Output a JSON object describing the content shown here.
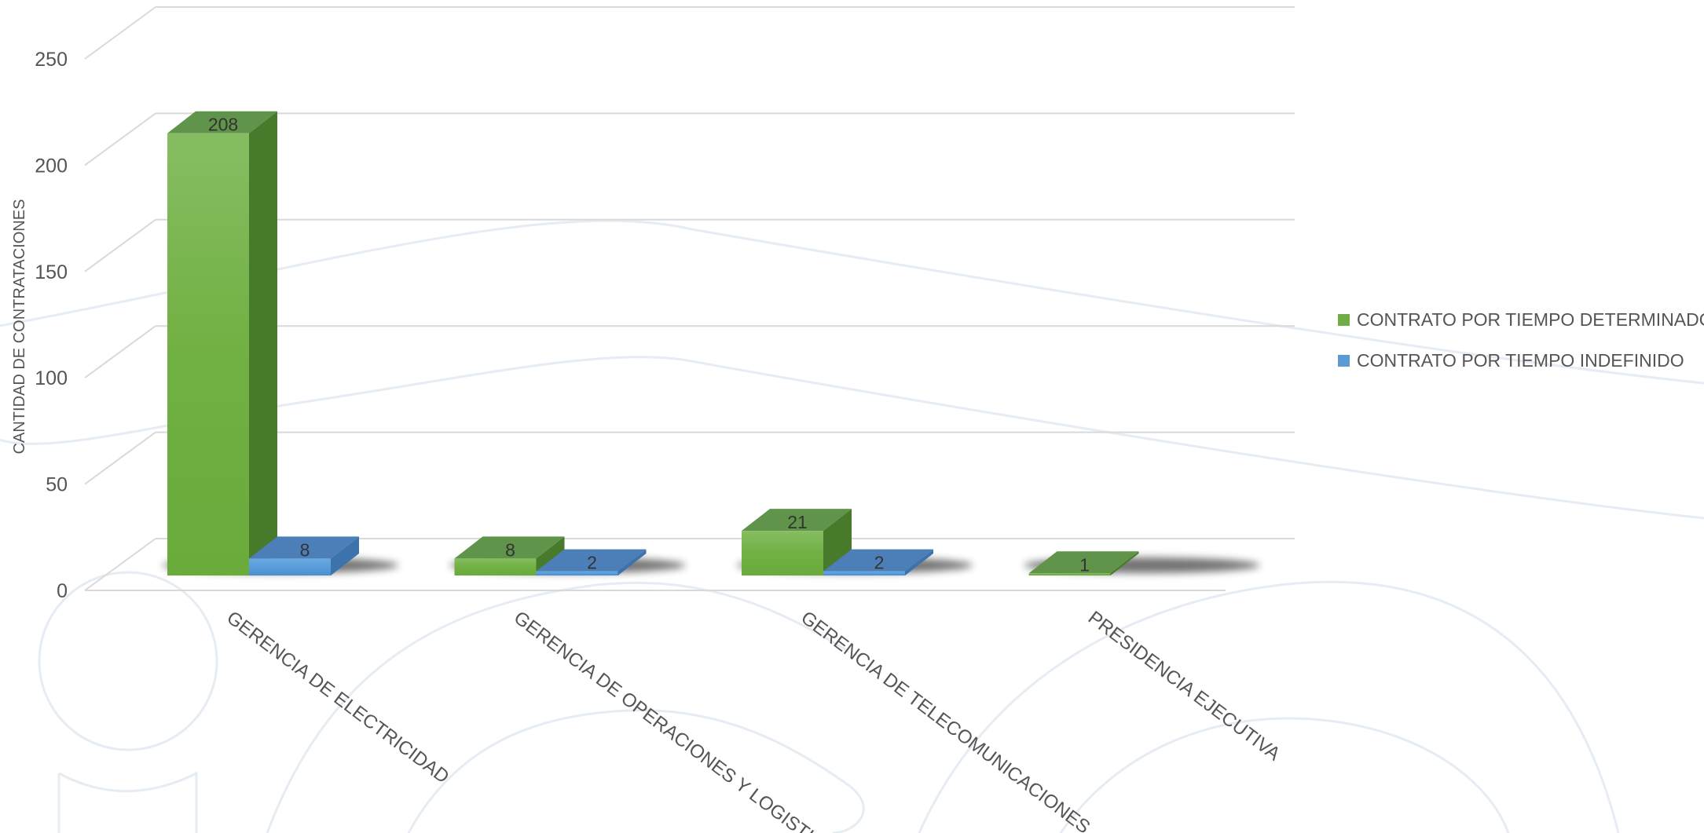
{
  "chart_data": {
    "type": "bar",
    "title": "",
    "xlabel": "",
    "ylabel": "CANTIDAD DE CONTRATACIONES",
    "ylim": [
      0,
      250
    ],
    "yticks": [
      0,
      50,
      100,
      150,
      200,
      250
    ],
    "categories": [
      "GERENCIA DE ELECTRICIDAD",
      "GERENCIA DE OPERACIONES Y LOGISTICA",
      "GERENCIA DE TELECOMUNICACIONES",
      "PRESIDENCIA EJECUTIVA"
    ],
    "series": [
      {
        "name": "CONTRATO POR TIEMPO DETERMINADO",
        "values": [
          208,
          8,
          21,
          1
        ],
        "color": "#70ad47"
      },
      {
        "name": "CONTRATO POR TIEMPO INDEFINIDO",
        "values": [
          8,
          2,
          2,
          null
        ],
        "color": "#5b9bd5"
      }
    ],
    "legend_position": "right",
    "grid": true,
    "style": "3d-column"
  }
}
